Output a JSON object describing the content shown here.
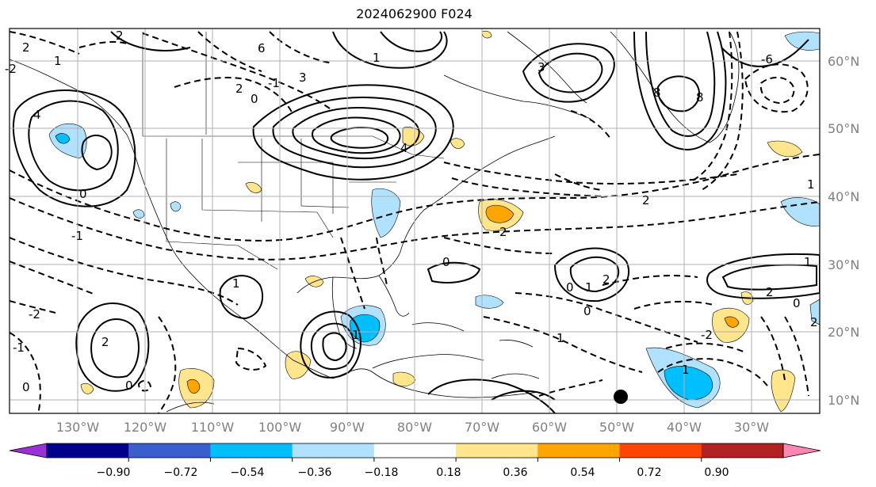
{
  "title": "2024062900 F024",
  "lat_labels": [
    "60°N",
    "50°N",
    "40°N",
    "30°N",
    "20°N",
    "10°N"
  ],
  "lon_labels": [
    "130°W",
    "120°W",
    "110°W",
    "100°W",
    "90°W",
    "80°W",
    "70°W",
    "60°W",
    "50°W",
    "40°W",
    "30°W"
  ],
  "colorbar": {
    "ticks": [
      "−0.90",
      "−0.72",
      "−0.54",
      "−0.36",
      "−0.18",
      "0.18",
      "0.36",
      "0.54",
      "0.72",
      "0.90"
    ],
    "colors": [
      "#9b30d9",
      "#00008b",
      "#3a5fcd",
      "#00bfff",
      "#b0e2ff",
      "#ffffff",
      "#ffe58c",
      "#ffa500",
      "#ff4500",
      "#b22222",
      "#ff85b3"
    ]
  },
  "contour_labels": [
    "2",
    "1",
    "-2",
    "6",
    "3",
    "0",
    "-1",
    "2",
    "-1",
    "2",
    "4",
    "2",
    "8",
    "8",
    "3",
    "4",
    "1",
    "0",
    "2",
    "0",
    "1",
    "0",
    "1",
    "2",
    "0",
    "1",
    "2",
    "1",
    "0",
    "1",
    "2",
    "2",
    "0",
    "-2",
    "-1",
    "0",
    "1",
    "1",
    "-2",
    "-6"
  ],
  "marker": "black-dot"
}
